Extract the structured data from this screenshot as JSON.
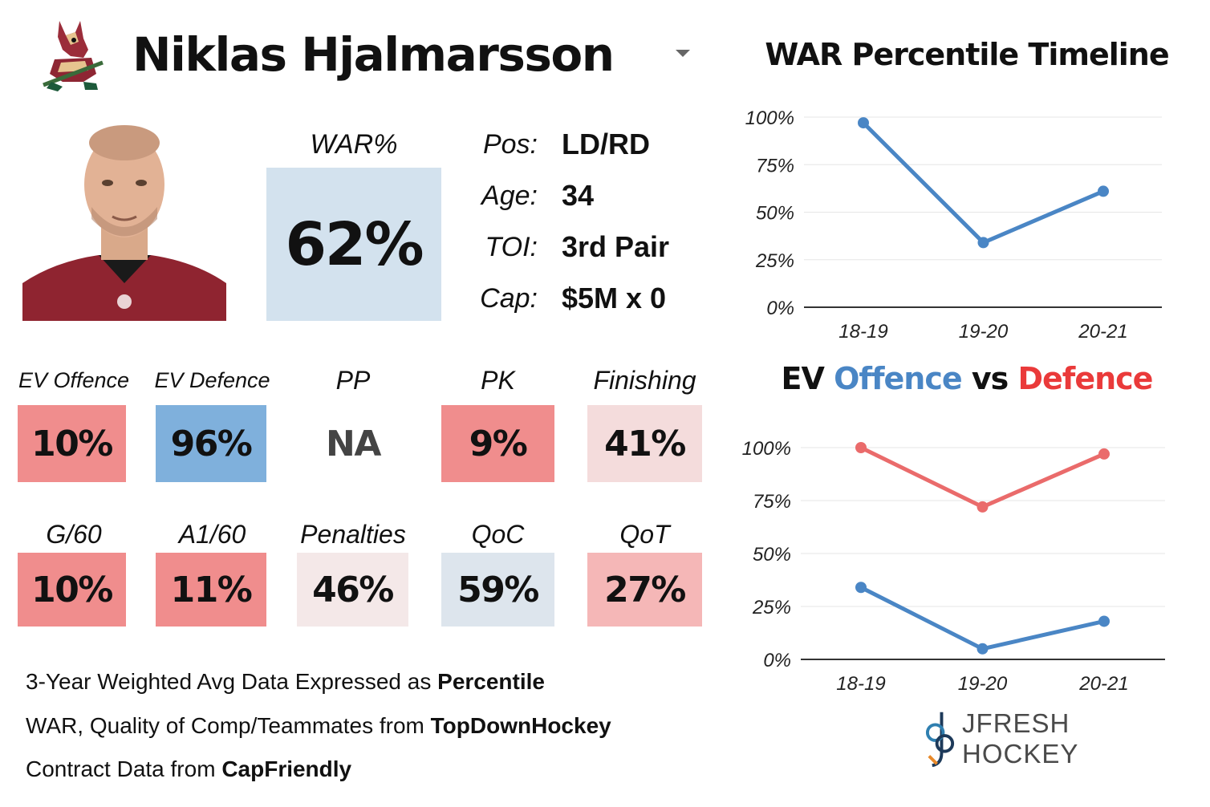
{
  "player": {
    "name": "Niklas Hjalmarsson",
    "team_logo_icon": "coyotes-logo-icon",
    "war": {
      "label": "WAR%",
      "value": "62%"
    },
    "info": [
      {
        "label": "Pos:",
        "value": "LD/RD"
      },
      {
        "label": "Age:",
        "value": "34"
      },
      {
        "label": "TOI:",
        "value": "3rd Pair"
      },
      {
        "label": "Cap:",
        "value": "$5M x 0"
      }
    ]
  },
  "metrics_row1": [
    {
      "label": "EV Offence",
      "value": "10%",
      "color": "#f08d8d"
    },
    {
      "label": "EV Defence",
      "value": "96%",
      "color": "#7fb0dc"
    },
    {
      "label": "PP",
      "value": "NA",
      "color": "#ffffff"
    },
    {
      "label": "PK",
      "value": "9%",
      "color": "#f08d8d"
    },
    {
      "label": "Finishing",
      "value": "41%",
      "color": "#f4dcdc"
    }
  ],
  "metrics_row2": [
    {
      "label": "G/60",
      "value": "10%",
      "color": "#f08d8d"
    },
    {
      "label": "A1/60",
      "value": "11%",
      "color": "#f08d8d"
    },
    {
      "label": "Penalties",
      "value": "46%",
      "color": "#f4e8e8"
    },
    {
      "label": "QoC",
      "value": "59%",
      "color": "#dde5ed"
    },
    {
      "label": "QoT",
      "value": "27%",
      "color": "#f5b7b7"
    }
  ],
  "footnotes": [
    {
      "text": "3-Year Weighted Avg Data Expressed as ",
      "bold": "Percentile"
    },
    {
      "text": "WAR, Quality of Comp/Teammates from ",
      "bold": "TopDownHockey"
    },
    {
      "text": "Contract Data from ",
      "bold": "CapFriendly"
    }
  ],
  "brand": {
    "name": "JFRESH HOCKEY",
    "icon": "jfresh-logo-icon"
  },
  "chart_data": [
    {
      "type": "line",
      "title": "WAR Percentile Timeline",
      "x": [
        "18-19",
        "19-20",
        "20-21"
      ],
      "ylim": [
        0,
        100
      ],
      "yticks": [
        "0%",
        "25%",
        "50%",
        "75%",
        "100%"
      ],
      "grid": true,
      "series": [
        {
          "values": [
            97,
            34,
            61
          ],
          "color": "#4a86c5"
        }
      ]
    },
    {
      "type": "line",
      "title_parts": [
        {
          "text": "EV ",
          "color": "#111111"
        },
        {
          "text": "Offence",
          "color": "#4a86c5"
        },
        {
          "text": " vs ",
          "color": "#111111"
        },
        {
          "text": "Defence",
          "color": "#ea3a3a"
        }
      ],
      "x": [
        "18-19",
        "19-20",
        "20-21"
      ],
      "ylim": [
        0,
        100
      ],
      "yticks": [
        "0%",
        "25%",
        "50%",
        "75%",
        "100%"
      ],
      "grid": true,
      "series": [
        {
          "name": "Defence",
          "values": [
            100,
            72,
            97
          ],
          "color": "#ea6b6b"
        },
        {
          "name": "Offence",
          "values": [
            34,
            5,
            18
          ],
          "color": "#4a86c5"
        }
      ]
    }
  ]
}
